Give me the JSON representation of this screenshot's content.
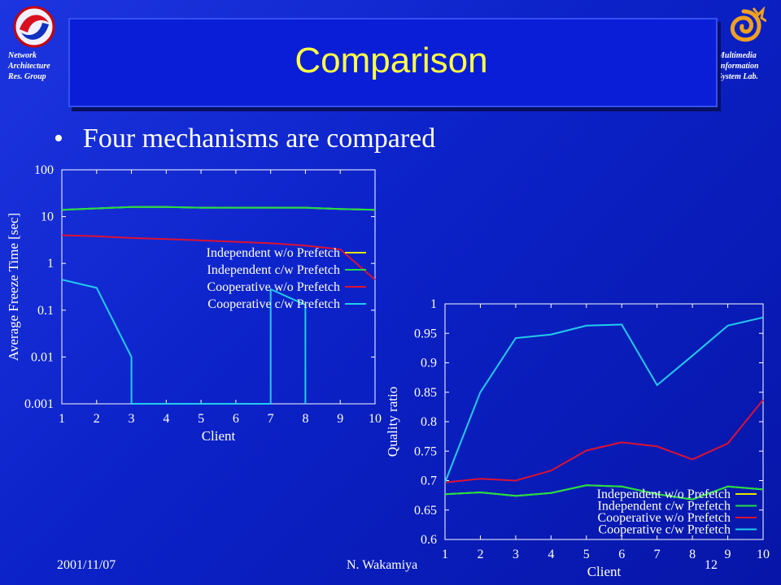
{
  "slide": {
    "title": "Comparison",
    "lab_left": [
      "Network",
      "Architecture",
      "Res. Group"
    ],
    "lab_right": [
      "Multimedia",
      "Information",
      "System Lab."
    ],
    "bullet": "Four mechanisms are compared",
    "footer_date": "2001/11/07",
    "footer_name": "N. Wakamiya",
    "footer_page": "12",
    "colors": {
      "background": "#0c22c8",
      "title": "#ffff44"
    }
  },
  "chart_data": [
    {
      "type": "line",
      "title": "",
      "xlabel": "Client",
      "ylabel": "Average Freeze Time [sec]",
      "y_scale": "log",
      "xlim": [
        1,
        10
      ],
      "ylim": [
        0.001,
        100
      ],
      "x_ticks": [
        "1",
        "2",
        "3",
        "4",
        "5",
        "6",
        "7",
        "8",
        "9",
        "10"
      ],
      "y_ticks": [
        "0.001",
        "0.01",
        "0.1",
        "1",
        "10",
        "100"
      ],
      "legend_position": "right-center",
      "series": [
        {
          "name": "Independent w/o Prefetch",
          "color": "#e6e600",
          "x": [
            1,
            2,
            3,
            4,
            5,
            6,
            7,
            8,
            9,
            10
          ],
          "y": [
            14,
            15,
            16,
            16,
            15.5,
            15.5,
            15.5,
            15.5,
            14.5,
            14
          ]
        },
        {
          "name": "Independent c/w Prefetch",
          "color": "#22dd44",
          "x": [
            1,
            2,
            3,
            4,
            5,
            6,
            7,
            8,
            9,
            10
          ],
          "y": [
            14,
            15,
            16,
            16,
            15.5,
            15.5,
            15.5,
            15.5,
            14.5,
            14
          ]
        },
        {
          "name": "Cooperative w/o Prefetch",
          "color": "#dd1133",
          "x": [
            1,
            2,
            3,
            4,
            5,
            6,
            7,
            8,
            9,
            10
          ],
          "y": [
            4,
            3.8,
            3.5,
            3.3,
            3.1,
            2.9,
            2.7,
            2.4,
            2,
            0.45
          ]
        },
        {
          "name": "Cooperative c/w Prefetch",
          "color": "#22ccee",
          "x": [
            1,
            2,
            3,
            3,
            7,
            7,
            8,
            8
          ],
          "y": [
            0.45,
            0.3,
            0.01,
            0.001,
            0.001,
            0.28,
            0.13,
            0.001
          ]
        }
      ]
    },
    {
      "type": "line",
      "title": "",
      "xlabel": "Client",
      "ylabel": "Quality ratio",
      "xlim": [
        1,
        10
      ],
      "ylim": [
        0.6,
        1
      ],
      "x_ticks": [
        "1",
        "2",
        "3",
        "4",
        "5",
        "6",
        "7",
        "8",
        "9",
        "10"
      ],
      "y_ticks": [
        "0.6",
        "0.65",
        "0.7",
        "0.75",
        "0.8",
        "0.85",
        "0.9",
        "0.95",
        "1"
      ],
      "legend_position": "bottom-right",
      "series": [
        {
          "name": "Independent w/o Prefetch",
          "color": "#e6e600",
          "x": [
            1,
            2,
            3,
            4,
            5,
            6,
            7,
            8,
            9,
            10
          ],
          "y": [
            0.677,
            0.68,
            0.674,
            0.679,
            0.692,
            0.69,
            0.677,
            0.668,
            0.69,
            0.685
          ]
        },
        {
          "name": "Independent c/w Prefetch",
          "color": "#22dd44",
          "x": [
            1,
            2,
            3,
            4,
            5,
            6,
            7,
            8,
            9,
            10
          ],
          "y": [
            0.677,
            0.68,
            0.674,
            0.679,
            0.692,
            0.69,
            0.677,
            0.668,
            0.69,
            0.685
          ]
        },
        {
          "name": "Cooperative w/o Prefetch",
          "color": "#dd1133",
          "x": [
            1,
            2,
            3,
            4,
            5,
            6,
            7,
            8,
            9,
            10
          ],
          "y": [
            0.697,
            0.703,
            0.7,
            0.717,
            0.751,
            0.765,
            0.758,
            0.736,
            0.763,
            0.837
          ]
        },
        {
          "name": "Cooperative c/w Prefetch",
          "color": "#22ccee",
          "x": [
            1,
            2,
            3,
            4,
            5,
            6,
            7,
            8,
            9,
            10
          ],
          "y": [
            0.697,
            0.85,
            0.942,
            0.948,
            0.963,
            0.965,
            0.862,
            0.912,
            0.963,
            0.977
          ]
        }
      ]
    }
  ]
}
